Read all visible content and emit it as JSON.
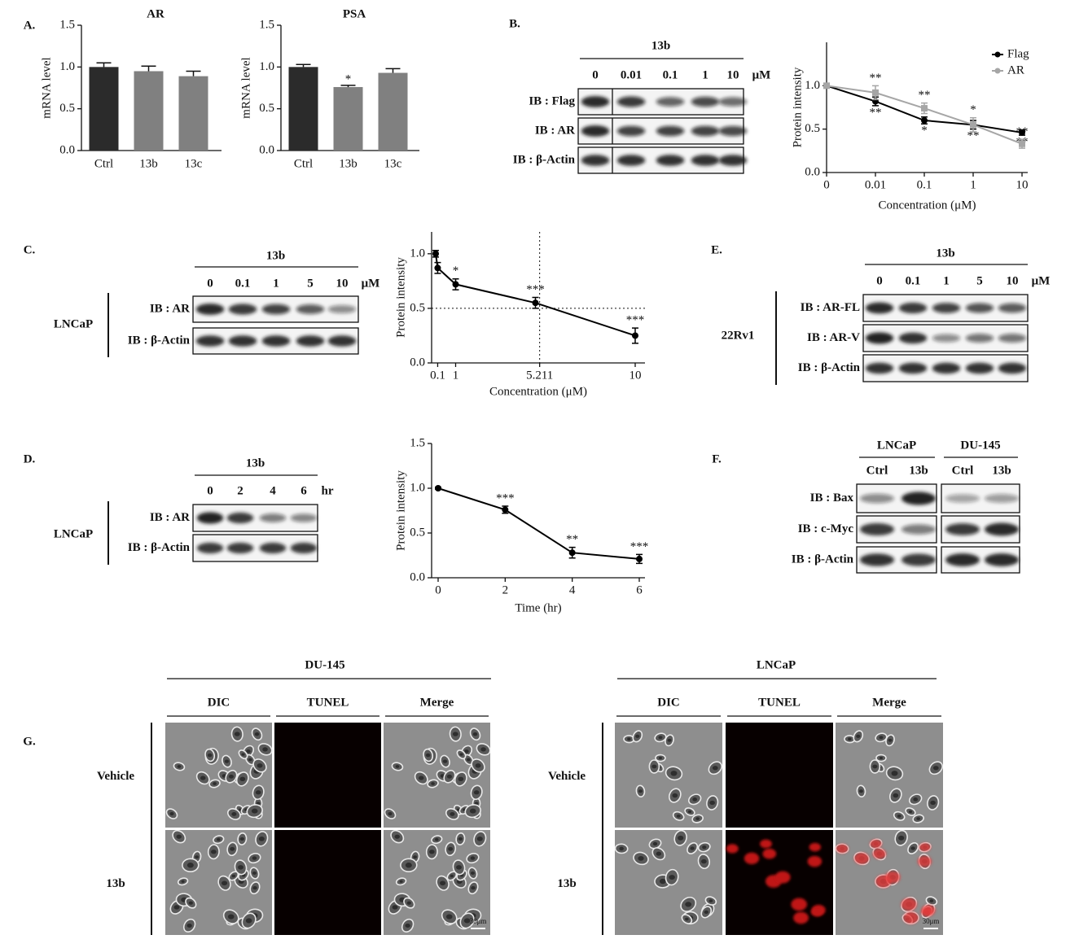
{
  "panel_labels": [
    "A.",
    "B.",
    "C.",
    "D.",
    "E.",
    "F.",
    "G."
  ],
  "chart_data": [
    {
      "type": "bar",
      "title": "AR",
      "y_label": "mRNA level",
      "categories": [
        "Ctrl",
        "13b",
        "13c"
      ],
      "values": [
        1.0,
        0.95,
        0.89
      ],
      "errors": [
        0.05,
        0.06,
        0.06
      ],
      "significance": [
        null,
        null,
        null
      ],
      "colors": [
        "#2b2b2b",
        "#808080",
        "#808080"
      ],
      "ylim": [
        0,
        1.5
      ],
      "yticks": [
        {
          "value": 0,
          "label": "0.0"
        },
        0.5,
        {
          "value": 1,
          "label": "1.0"
        },
        1.5
      ]
    },
    {
      "type": "bar",
      "title": "PSA",
      "y_label": "mRNA level",
      "categories": [
        "Ctrl",
        "13b",
        "13c"
      ],
      "values": [
        1.0,
        0.76,
        0.93
      ],
      "errors": [
        0.03,
        0.02,
        0.05
      ],
      "significance": [
        null,
        "*",
        null
      ],
      "colors": [
        "#2b2b2b",
        "#808080",
        "#808080"
      ],
      "ylim": [
        0,
        1.5
      ],
      "yticks": [
        {
          "value": 0,
          "label": "0.0"
        },
        0.5,
        {
          "value": 1,
          "label": "1.0"
        },
        1.5
      ]
    },
    {
      "type": "line",
      "x_label": "Concentration (μM)",
      "y_label": "Protein intensity",
      "categories": [
        "0",
        "0.01",
        "0.1",
        "1",
        "10"
      ],
      "legend": "upper right",
      "series": [
        {
          "name": "Flag",
          "color": "#000000",
          "values": [
            1.0,
            0.82,
            0.6,
            0.55,
            0.46
          ],
          "errors": [
            0.02,
            0.05,
            0.04,
            0.05,
            0.03
          ],
          "significance": [
            null,
            "**",
            "*",
            "**",
            "**"
          ]
        },
        {
          "name": "AR",
          "color": "#a6a6a6",
          "values": [
            1.0,
            0.92,
            0.74,
            0.55,
            0.33
          ],
          "errors": [
            0.02,
            0.08,
            0.06,
            0.08,
            0.05
          ],
          "significance": [
            null,
            "**",
            "**",
            "*",
            "**"
          ]
        }
      ],
      "ylim": [
        0,
        1.5
      ],
      "yticks": [
        {
          "value": 0,
          "label": "0.0"
        },
        0.5,
        {
          "value": 1,
          "label": "1.0"
        }
      ]
    },
    {
      "type": "line",
      "x_label": "Concentration (μM)",
      "y_label": "Protein intensity",
      "x": [
        0,
        0.1,
        1,
        5,
        10
      ],
      "series": [
        {
          "color": "#000000",
          "values": [
            1.0,
            0.87,
            0.72,
            0.55,
            0.25
          ],
          "errors": [
            0.03,
            0.05,
            0.05,
            0.05,
            0.07
          ],
          "significance": [
            null,
            null,
            "*",
            "***",
            "***"
          ]
        }
      ],
      "xlim": [
        0,
        10
      ],
      "xticks": [
        0.1,
        1,
        5.211,
        10
      ],
      "ref_x": 5.211,
      "ref_y": 0.5,
      "ylim": [
        0,
        1.2
      ],
      "yticks": [
        {
          "value": 0,
          "label": "0.0"
        },
        0.5,
        {
          "value": 1,
          "label": "1.0"
        }
      ]
    },
    {
      "type": "line",
      "x_label": "Time (hr)",
      "y_label": "Protein intensity",
      "x": [
        0,
        2,
        4,
        6
      ],
      "series": [
        {
          "color": "#000000",
          "values": [
            1.0,
            0.76,
            0.28,
            0.21
          ],
          "errors": [
            0.01,
            0.04,
            0.06,
            0.05
          ],
          "significance": [
            null,
            "***",
            "**",
            "***"
          ]
        }
      ],
      "xlim": [
        0,
        6
      ],
      "xticks": [
        0,
        2,
        4,
        6
      ],
      "ylim": [
        0,
        1.5
      ],
      "yticks": [
        {
          "value": 0,
          "label": "0.0"
        },
        0.5,
        {
          "value": 1,
          "label": "1.0"
        },
        1.5
      ]
    }
  ],
  "blots": [
    {
      "header": "13b",
      "lanes": [
        "0",
        "0.01",
        "0.1",
        "1",
        "10"
      ],
      "unit": "μM",
      "rows": [
        "IB : Flag",
        "IB : AR",
        "IB : β-Actin"
      ]
    },
    {
      "cell_line": "LNCaP",
      "header": "13b",
      "lanes": [
        "0",
        "0.1",
        "1",
        "5",
        "10"
      ],
      "unit": "μM",
      "rows": [
        "IB : AR",
        "IB : β-Actin"
      ]
    },
    {
      "cell_line": "LNCaP",
      "header": "13b",
      "lanes": [
        "0",
        "2",
        "4",
        "6"
      ],
      "unit": "hr",
      "rows": [
        "IB : AR",
        "IB : β-Actin"
      ]
    },
    {
      "cell_line": "22Rv1",
      "header": "13b",
      "lanes": [
        "0",
        "0.1",
        "1",
        "5",
        "10"
      ],
      "unit": "μM",
      "rows": [
        "IB : AR-FL",
        "IB : AR-V",
        "IB : β-Actin"
      ]
    },
    {
      "groups": [
        "LNCaP",
        "DU-145"
      ],
      "lanes": [
        "Ctrl",
        "13b",
        "Ctrl",
        "13b"
      ],
      "rows": [
        "IB : Bax",
        "IB : c-Myc",
        "IB : β-Actin"
      ]
    }
  ],
  "microscopy": {
    "groups": [
      "DU-145",
      "LNCaP"
    ],
    "columns": [
      "DIC",
      "TUNEL",
      "Merge"
    ],
    "rows": [
      "Vehicle",
      "13b"
    ],
    "scale_bar": "30μm"
  }
}
